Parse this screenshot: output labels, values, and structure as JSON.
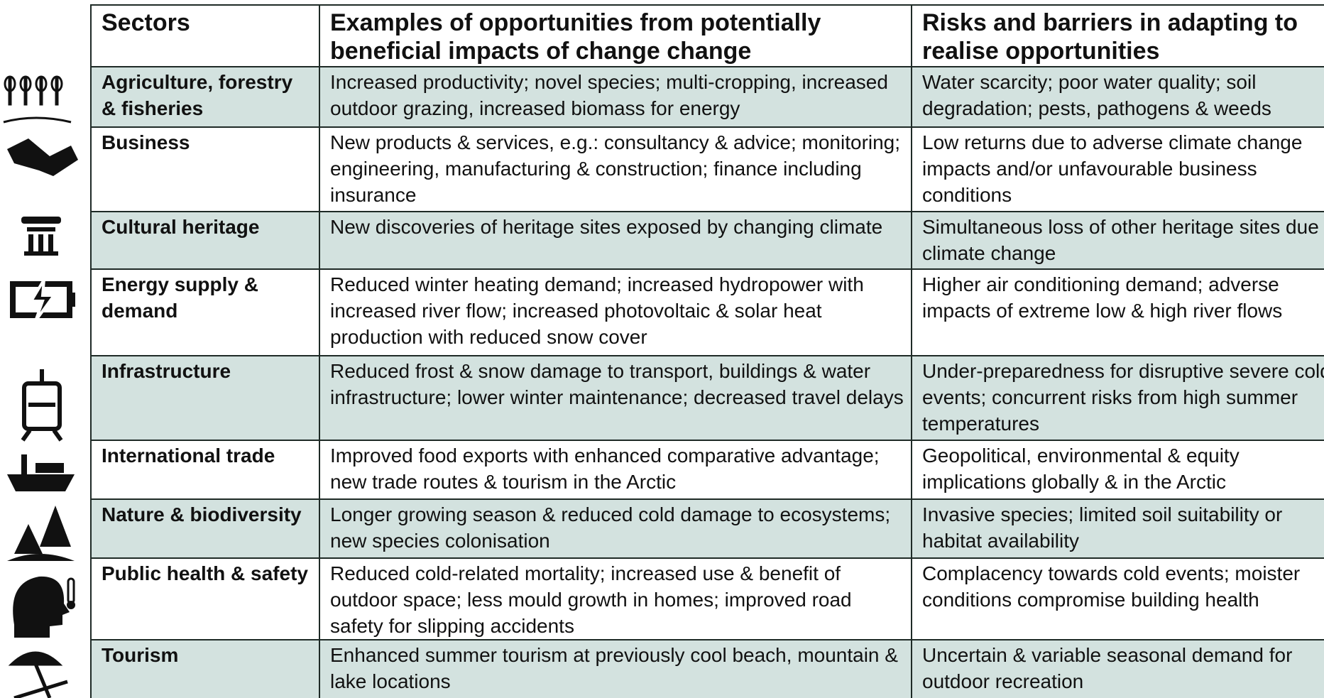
{
  "table": {
    "header": [
      "Sectors",
      "Examples of opportunities from potentially beneficial impacts of change change",
      "Risks and barriers in adapting to realise opportunities"
    ],
    "rows": [
      [
        "Agriculture, forestry & fisheries",
        "Increased productivity; novel species; multi-cropping, increased outdoor grazing, increased biomass for energy",
        "Water scarcity; poor water quality; soil degradation; pests, pathogens & weeds"
      ],
      [
        "Business",
        "New products & services, e.g.: consultancy & advice; monitoring; engineering, manufacturing & construction; finance including insurance",
        "Low returns due to adverse climate change impacts and/or unfavourable business conditions"
      ],
      [
        "Cultural heritage",
        "New discoveries of heritage sites exposed by changing climate",
        "Simultaneous loss of other heritage sites due to climate change"
      ],
      [
        "Energy supply & demand",
        "Reduced winter heating demand; increased hydropower with increased river flow; increased photovoltaic & solar heat production with reduced snow cover",
        "Higher air conditioning demand; adverse impacts of extreme low & high river flows"
      ],
      [
        "Infrastructure",
        "Reduced frost & snow damage to transport, buildings & water infrastructure; lower winter maintenance; decreased travel delays",
        "Under-preparedness for disruptive severe cold events; concurrent risks from high summer temperatures"
      ],
      [
        "International trade",
        "Improved food exports with enhanced comparative advantage; new trade routes & tourism in the Arctic",
        "Geopolitical, environmental & equity implications globally & in the Arctic"
      ],
      [
        "Nature & biodiversity",
        "Longer growing season & reduced cold damage to ecosystems; new species colonisation",
        "Invasive species; limited soil suitability or habitat availability"
      ],
      [
        "Public health & safety",
        "Reduced cold-related mortality; increased use & benefit of outdoor space; less mould growth in homes; improved road safety for slipping accidents",
        "Complacency towards cold events; moister conditions compromise building health"
      ],
      [
        "Tourism",
        "Enhanced summer tourism at previously cool beach, mountain & lake locations",
        "Uncertain & variable seasonal demand for outdoor recreation"
      ]
    ]
  }
}
